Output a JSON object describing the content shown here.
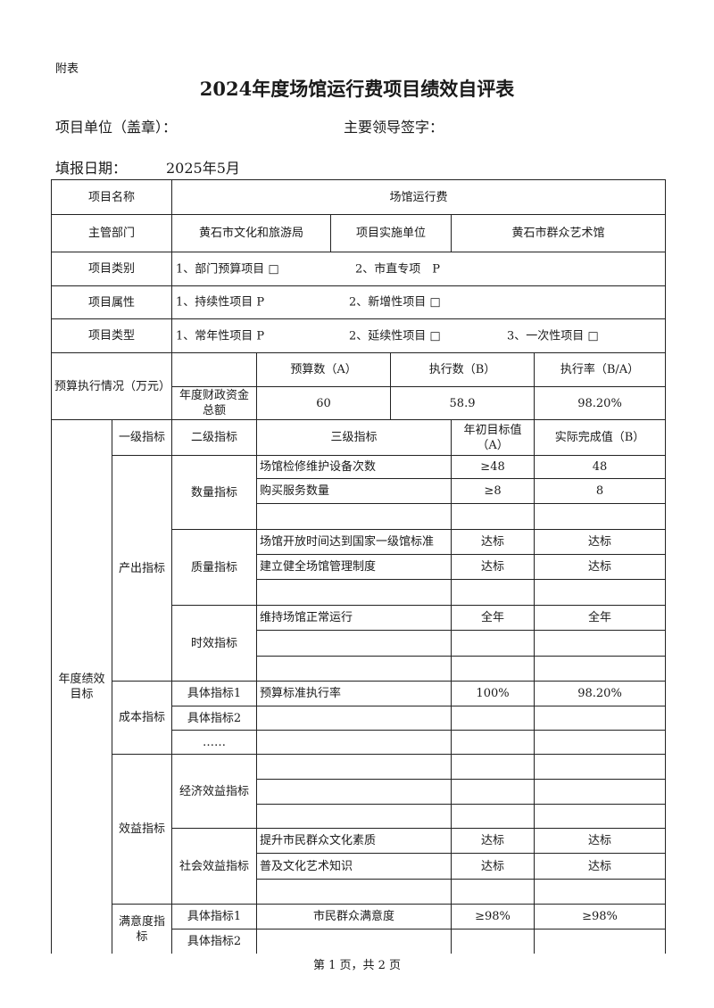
{
  "header": {
    "attachment": "附表",
    "title": "2024年度场馆运行费项目绩效自评表",
    "unit_label": "项目单位（盖章）：",
    "leader_label": "主要领导签字：",
    "date_label": "填报日期：",
    "date_value": "2025年5月"
  },
  "info": {
    "name_label": "项目名称",
    "name_value": "场馆运行费",
    "dept_label": "主管部门",
    "dept_value": "黄石市文化和旅游局",
    "impl_label": "项目实施单位",
    "impl_value": "黄石市群众艺术馆",
    "category_label": "项目类别",
    "category_options": [
      "1、部门预算项目 □",
      "2、市直专项　P"
    ],
    "attribute_label": "项目属性",
    "attribute_options": [
      "1、持续性项目 P",
      "2、新增性项目 □"
    ],
    "type_label": "项目类型",
    "type_options": [
      "1、常年性项目 P",
      "2、延续性项目 □",
      "3、一次性项目 □"
    ]
  },
  "budget": {
    "label": "预算执行情况（万元）",
    "col_a": "预算数（A）",
    "col_b": "执行数（B）",
    "col_rate": "执行率（B/A）",
    "row_label": "年度财政资金总额",
    "a": "60",
    "b": "58.9",
    "rate": "98.20%"
  },
  "performance": {
    "label": "年度绩效目标",
    "headers": [
      "一级指标",
      "二级指标",
      "三级指标",
      "年初目标值（A）",
      "实际完成值（B）"
    ],
    "output": {
      "label": "产出指标",
      "quantity": {
        "label": "数量指标",
        "rows": [
          {
            "name": "场馆检修维护设备次数",
            "target": "≥48",
            "actual": "48"
          },
          {
            "name": "购买服务数量",
            "target": "≥8",
            "actual": "8"
          },
          {
            "name": "",
            "target": "",
            "actual": ""
          }
        ]
      },
      "quality": {
        "label": "质量指标",
        "rows": [
          {
            "name": "场馆开放时间达到国家一级馆标准",
            "target": "达标",
            "actual": "达标"
          },
          {
            "name": "建立健全场馆管理制度",
            "target": "达标",
            "actual": "达标"
          },
          {
            "name": "",
            "target": "",
            "actual": ""
          }
        ]
      },
      "timeliness": {
        "label": "时效指标",
        "rows": [
          {
            "name": "维持场馆正常运行",
            "target": "全年",
            "actual": "全年"
          },
          {
            "name": "",
            "target": "",
            "actual": ""
          },
          {
            "name": "",
            "target": "",
            "actual": ""
          }
        ]
      }
    },
    "cost": {
      "label": "成本指标",
      "rows": [
        {
          "sub": "具体指标1",
          "name": "预算标准执行率",
          "target": "100%",
          "actual": "98.20%"
        },
        {
          "sub": "具体指标2",
          "name": "",
          "target": "",
          "actual": ""
        },
        {
          "sub": "……",
          "name": "",
          "target": "",
          "actual": ""
        }
      ]
    },
    "benefit": {
      "label": "效益指标",
      "economic": {
        "label": "经济效益指标"
      },
      "social": {
        "label": "社会效益指标",
        "rows": [
          {
            "name": "提升市民群众文化素质",
            "target": "达标",
            "actual": "达标"
          },
          {
            "name": "普及文化艺术知识",
            "target": "达标",
            "actual": "达标"
          }
        ]
      }
    },
    "satisfaction": {
      "label": "满意度指标",
      "rows": [
        {
          "sub": "具体指标1",
          "name": "市民群众满意度",
          "target": "≥98%",
          "actual": "≥98%"
        },
        {
          "sub": "具体指标2",
          "name": "",
          "target": "",
          "actual": ""
        }
      ]
    }
  },
  "footer": "第 1 页，共 2 页"
}
